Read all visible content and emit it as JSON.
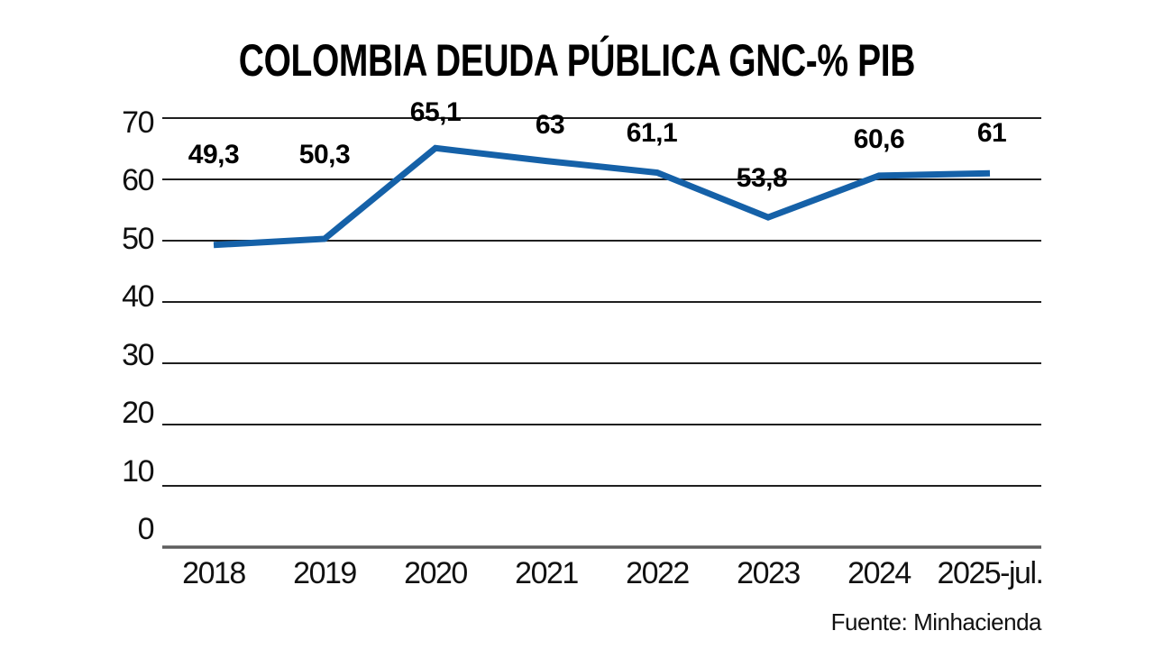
{
  "page": {
    "background": "#ffffff"
  },
  "chart_data": {
    "type": "line",
    "title": "COLOMBIA DEUDA PÚBLICA GNC-% PIB",
    "source": "Fuente: Minhacienda",
    "categories": [
      "2018",
      "2019",
      "2020",
      "2021",
      "2022",
      "2023",
      "2024",
      "2025-jul."
    ],
    "values": [
      49.3,
      50.3,
      65.1,
      63,
      61.1,
      53.8,
      60.6,
      61
    ],
    "point_labels": [
      "49,3",
      "50,3",
      "65,1",
      "63",
      "61,1",
      "53,8",
      "60,6",
      "61"
    ],
    "xlabel": "",
    "ylabel": "",
    "ylim": [
      0,
      70
    ],
    "yticks": [
      70,
      60,
      50,
      40,
      30,
      20,
      10,
      0
    ],
    "grid": "horizontal",
    "legend": "none",
    "line_color": "#1561a8",
    "grid_color": "#1f1f1f",
    "baseline_color": "#5e5e5e",
    "label_offsets": {
      "dx": [
        0,
        0,
        0,
        4,
        -6,
        -7,
        0,
        2
      ],
      "dy": [
        100,
        93,
        39,
        40,
        44,
        43,
        40,
        44
      ]
    }
  }
}
